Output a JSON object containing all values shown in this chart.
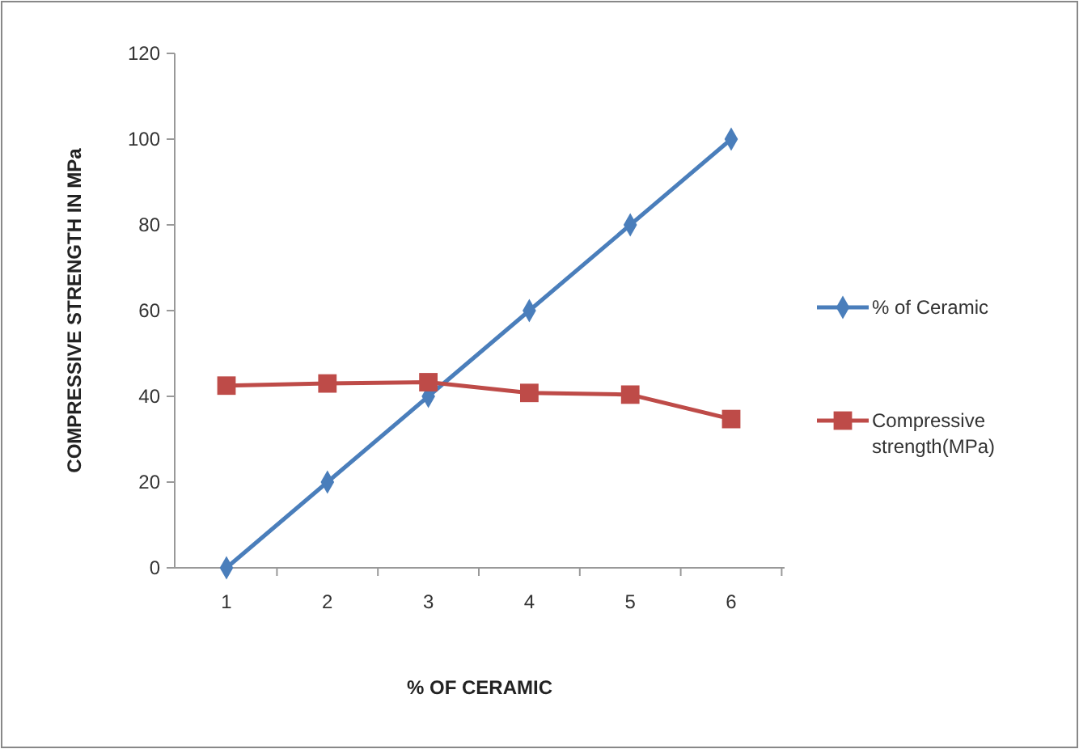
{
  "chart_data": {
    "type": "line",
    "xlabel": "% OF CERAMIC",
    "ylabel": "COMPRESSIVE STRENGTH IN MPa",
    "categories": [
      "1",
      "2",
      "3",
      "4",
      "5",
      "6"
    ],
    "series": [
      {
        "name": "% of Ceramic",
        "color": "#4a7ebb",
        "marker": "diamond",
        "values": [
          0,
          20,
          40,
          60,
          80,
          100
        ]
      },
      {
        "name": "Compressive strength(MPa)",
        "color": "#be4b48",
        "marker": "square",
        "values": [
          42.5,
          43,
          43.3,
          40.8,
          40.4,
          34.7
        ]
      }
    ],
    "ylim": [
      0,
      120
    ],
    "yticks": [
      0,
      20,
      40,
      60,
      80,
      100,
      120
    ],
    "grid": false,
    "legend": "right"
  }
}
